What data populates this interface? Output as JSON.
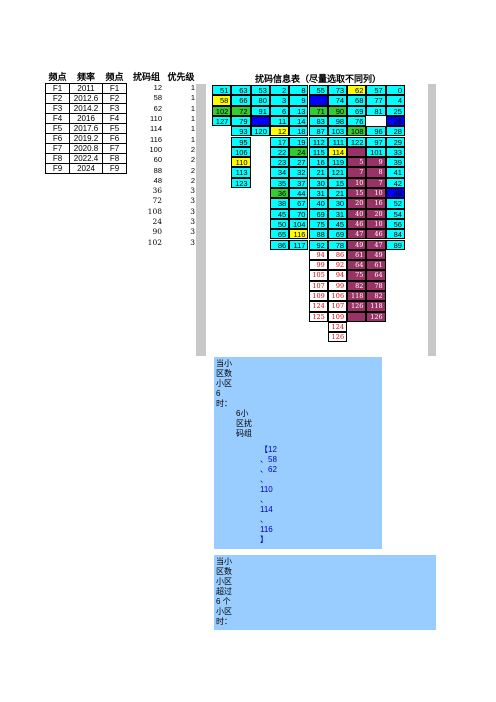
{
  "freq_table": {
    "headers": [
      "频点",
      "频率",
      "频点"
    ],
    "rows": [
      [
        "F1",
        "2011",
        "F1"
      ],
      [
        "F2",
        "2012.6",
        "F2"
      ],
      [
        "F3",
        "2014.2",
        "F3"
      ],
      [
        "F4",
        "2016",
        "F4"
      ],
      [
        "F5",
        "2017.6",
        "F5"
      ],
      [
        "F6",
        "2019.2",
        "F6"
      ],
      [
        "F7",
        "2020.8",
        "F7"
      ],
      [
        "F8",
        "2022.4",
        "F8"
      ],
      [
        "F9",
        "2024",
        "F9"
      ]
    ]
  },
  "scramble_list": {
    "headers": [
      "扰码组",
      "优先级"
    ],
    "rows": [
      [
        "12",
        "1"
      ],
      [
        "58",
        "1"
      ],
      [
        "62",
        "1"
      ],
      [
        "110",
        "1"
      ],
      [
        "114",
        "1"
      ],
      [
        "116",
        "1"
      ],
      [
        "100",
        "2"
      ],
      [
        "60",
        "2"
      ],
      [
        "88",
        "2"
      ],
      [
        "48",
        "2"
      ],
      [
        "36",
        "3"
      ],
      [
        "72",
        "3"
      ],
      [
        "108",
        "3"
      ],
      [
        "24",
        "3"
      ],
      [
        "90",
        "3"
      ],
      [
        "102",
        "3"
      ]
    ]
  },
  "info_grid": {
    "title": "扰码信息表（尽量选取不同列）",
    "rows": [
      [
        "51",
        "63",
        "53",
        "2",
        "8",
        "55",
        "73",
        "62",
        "57",
        "0"
      ],
      [
        "58",
        "66",
        "80",
        "3",
        "9",
        "",
        "74",
        "68",
        "77",
        "4"
      ],
      [
        "102",
        "72",
        "91",
        "6",
        "13",
        "71",
        "90",
        "69",
        "81",
        "25"
      ],
      [
        "127",
        "79",
        "",
        "11",
        "14",
        "83",
        "98",
        "76",
        "",
        "26"
      ],
      [
        "",
        "93",
        "120",
        "12",
        "18",
        "87",
        "103",
        "108",
        "96",
        "28"
      ],
      [
        "",
        "95",
        "",
        "17",
        "19",
        "112",
        "111",
        "122",
        "97",
        "29"
      ],
      [
        "",
        "106",
        "",
        "22",
        "24",
        "115",
        "114",
        "",
        "101",
        "33"
      ],
      [
        "",
        "110",
        "",
        "23",
        "27",
        "16",
        "119",
        "5",
        "9",
        "39"
      ],
      [
        "",
        "113",
        "",
        "34",
        "32",
        "21",
        "121",
        "7",
        "8",
        "41"
      ],
      [
        "",
        "123",
        "",
        "35",
        "37",
        "30",
        "15",
        "10",
        "7",
        "42"
      ],
      [
        "",
        "",
        "",
        "36",
        "44",
        "31",
        "21",
        "15",
        "10",
        "48"
      ],
      [
        "",
        "",
        "",
        "38",
        "67",
        "40",
        "30",
        "20",
        "16",
        "52"
      ],
      [
        "",
        "",
        "",
        "45",
        "70",
        "69",
        "31",
        "40",
        "20",
        "54"
      ],
      [
        "",
        "",
        "",
        "50",
        "104",
        "75",
        "45",
        "46",
        "10",
        "56"
      ],
      [
        "",
        "",
        "",
        "65",
        "116",
        "88",
        "69",
        "47",
        "46",
        "84"
      ],
      [
        "",
        "",
        "",
        "86",
        "117",
        "92",
        "78",
        "49",
        "47",
        "89"
      ],
      [
        "",
        "",
        "",
        "",
        "",
        "94",
        "86",
        "61",
        "49",
        ""
      ],
      [
        "",
        "",
        "",
        "",
        "",
        "99",
        "92",
        "64",
        "61",
        ""
      ],
      [
        "",
        "",
        "",
        "",
        "",
        "105",
        "94",
        "75",
        "64",
        ""
      ],
      [
        "",
        "",
        "",
        "",
        "",
        "107",
        "99",
        "82",
        "78",
        ""
      ],
      [
        "",
        "",
        "",
        "",
        "",
        "109",
        "106",
        "118",
        "82",
        ""
      ],
      [
        "",
        "",
        "",
        "",
        "",
        "124",
        "107",
        "126",
        "118",
        ""
      ],
      [
        "",
        "",
        "",
        "",
        "",
        "125",
        "109",
        "",
        "126",
        ""
      ],
      [
        "",
        "",
        "",
        "",
        "",
        "",
        "124",
        "",
        "",
        ""
      ],
      [
        "",
        "",
        "",
        "",
        "",
        "",
        "126",
        "",
        "",
        ""
      ]
    ]
  },
  "notes": {
    "note1_lines": [
      "当小",
      "区数",
      "小区",
      "6",
      "时："
    ],
    "note1_sub_lines": [
      "6小",
      "区扰",
      "码组"
    ],
    "note1_list_lines": [
      "【12",
      "、58",
      "、62",
      "、",
      "110",
      "、",
      "114",
      "、",
      "116",
      "】"
    ],
    "note2_lines": [
      "当小",
      "区数",
      "小区",
      "超过",
      "6 个",
      "小区",
      "时："
    ]
  },
  "colors": {
    "cyan": "#00ffff",
    "yellow": "#ffff00",
    "green": "#33cc33",
    "blue": "#0000ff",
    "maroon": "#993366",
    "note_bg": "#99ccff",
    "grey_bar": "#c8c8c8"
  }
}
